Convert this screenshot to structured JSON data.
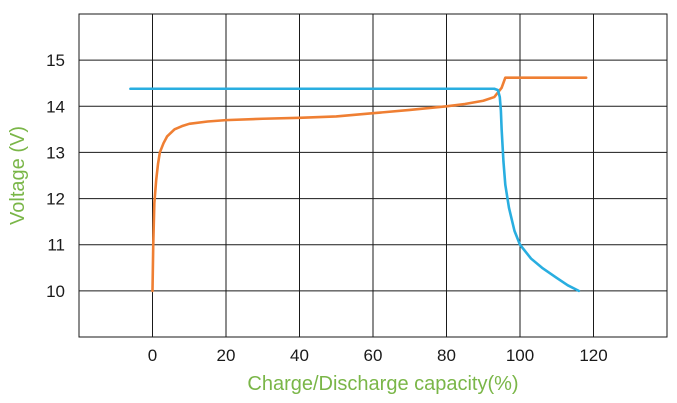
{
  "chart_data": {
    "type": "line",
    "title": "",
    "xlabel": "Charge/Discharge capacity(%)",
    "ylabel": "Voltage (V)",
    "xlim": [
      -20,
      140
    ],
    "ylim": [
      9,
      16
    ],
    "xticks": [
      0,
      20,
      40,
      60,
      80,
      100,
      120
    ],
    "yticks": [
      10,
      11,
      12,
      13,
      14,
      15
    ],
    "grid": true,
    "legend": "none",
    "axis_label_color": "#7ab648",
    "series": [
      {
        "color": "#ef7f33",
        "points": [
          [
            0,
            10.0
          ],
          [
            0.2,
            11.0
          ],
          [
            0.5,
            11.9
          ],
          [
            1,
            12.4
          ],
          [
            1.5,
            12.75
          ],
          [
            2,
            13.0
          ],
          [
            3,
            13.2
          ],
          [
            4,
            13.35
          ],
          [
            6,
            13.5
          ],
          [
            8,
            13.57
          ],
          [
            10,
            13.62
          ],
          [
            15,
            13.67
          ],
          [
            20,
            13.7
          ],
          [
            30,
            13.73
          ],
          [
            40,
            13.75
          ],
          [
            50,
            13.78
          ],
          [
            60,
            13.85
          ],
          [
            70,
            13.92
          ],
          [
            80,
            14.0
          ],
          [
            85,
            14.05
          ],
          [
            90,
            14.12
          ],
          [
            93,
            14.2
          ],
          [
            95,
            14.4
          ],
          [
            96,
            14.62
          ],
          [
            100,
            14.62
          ],
          [
            110,
            14.62
          ],
          [
            118,
            14.62
          ]
        ]
      },
      {
        "color": "#29aee0",
        "points": [
          [
            -6,
            14.38
          ],
          [
            0,
            14.38
          ],
          [
            20,
            14.38
          ],
          [
            40,
            14.38
          ],
          [
            60,
            14.38
          ],
          [
            80,
            14.38
          ],
          [
            93,
            14.38
          ],
          [
            94,
            14.35
          ],
          [
            94.5,
            14.2
          ],
          [
            94.8,
            13.9
          ],
          [
            95,
            13.5
          ],
          [
            95.5,
            12.8
          ],
          [
            96,
            12.3
          ],
          [
            97,
            11.8
          ],
          [
            98.5,
            11.3
          ],
          [
            100,
            11.0
          ],
          [
            103,
            10.7
          ],
          [
            106,
            10.5
          ],
          [
            110,
            10.28
          ],
          [
            113,
            10.12
          ],
          [
            116,
            10.0
          ]
        ]
      }
    ]
  }
}
